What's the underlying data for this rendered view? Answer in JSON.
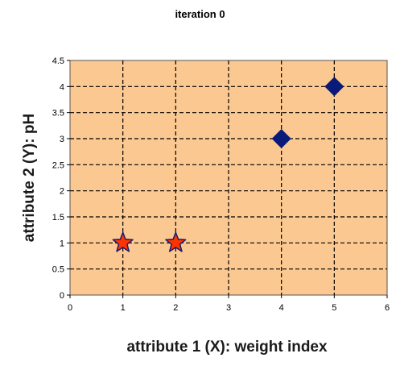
{
  "chart_data": {
    "type": "scatter",
    "title": "iteration 0",
    "xlabel": "attribute 1 (X): weight index",
    "ylabel": "attribute 2 (Y): pH",
    "xlim": [
      0,
      6
    ],
    "ylim": [
      0,
      4.5
    ],
    "x_ticks": [
      "0",
      "1",
      "2",
      "3",
      "4",
      "5",
      "6"
    ],
    "y_ticks": [
      "0",
      "0.5",
      "1",
      "1.5",
      "2",
      "2.5",
      "3",
      "3.5",
      "4",
      "4.5"
    ],
    "grid": true,
    "plot_background": "#FAC890",
    "series": [
      {
        "marker": "star",
        "color": "#FF3300",
        "edge_color": "#1a1a6e",
        "points": [
          {
            "x": 1,
            "y": 1
          },
          {
            "x": 2,
            "y": 1
          }
        ]
      },
      {
        "marker": "diamond",
        "color": "#0A1A78",
        "points": [
          {
            "x": 4,
            "y": 3
          },
          {
            "x": 5,
            "y": 4
          }
        ]
      }
    ]
  }
}
